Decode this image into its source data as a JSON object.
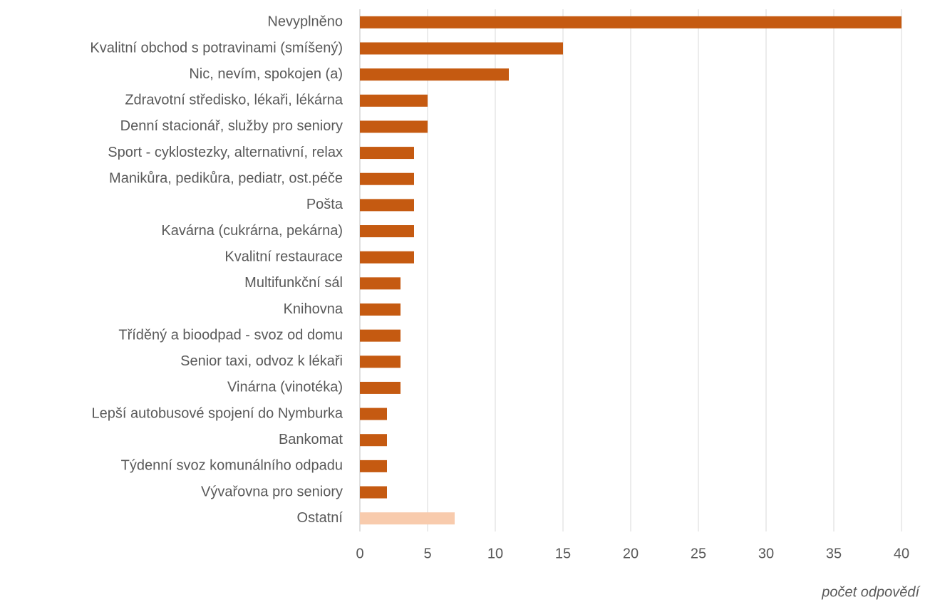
{
  "chart_data": {
    "type": "bar",
    "orientation": "horizontal",
    "categories": [
      "Nevyplněno",
      "Kvalitní obchod s potravinami (smíšený)",
      "Nic, nevím, spokojen (a)",
      "Zdravotní středisko, lékaři, lékárna",
      "Denní stacionář, služby pro seniory",
      "Sport - cyklostezky, alternativní, relax",
      "Manikůra, pedikůra, pediatr, ost.péče",
      "Pošta",
      "Kavárna (cukrárna, pekárna)",
      "Kvalitní restaurace",
      "Multifunkční sál",
      "Knihovna",
      "Tříděný a bioodpad - svoz od domu",
      "Senior taxi, odvoz k lékaři",
      "Vinárna (vinotéka)",
      "Lepší autobusové spojení do Nymburka",
      "Bankomat",
      "Týdenní svoz komunálního odpadu",
      "Vývařovna pro seniory",
      "Ostatní"
    ],
    "values": [
      40,
      15,
      11,
      5,
      5,
      4,
      4,
      4,
      4,
      4,
      3,
      3,
      3,
      3,
      3,
      2,
      2,
      2,
      2,
      7
    ],
    "colors": [
      "#c55a11",
      "#c55a11",
      "#c55a11",
      "#c55a11",
      "#c55a11",
      "#c55a11",
      "#c55a11",
      "#c55a11",
      "#c55a11",
      "#c55a11",
      "#c55a11",
      "#c55a11",
      "#c55a11",
      "#c55a11",
      "#c55a11",
      "#c55a11",
      "#c55a11",
      "#c55a11",
      "#c55a11",
      "#f8cbad"
    ],
    "xlabel": "počet odpovědí",
    "xlim": [
      0,
      40
    ],
    "xticks": [
      0,
      5,
      10,
      15,
      20,
      25,
      30,
      35,
      40
    ],
    "grid": true
  }
}
